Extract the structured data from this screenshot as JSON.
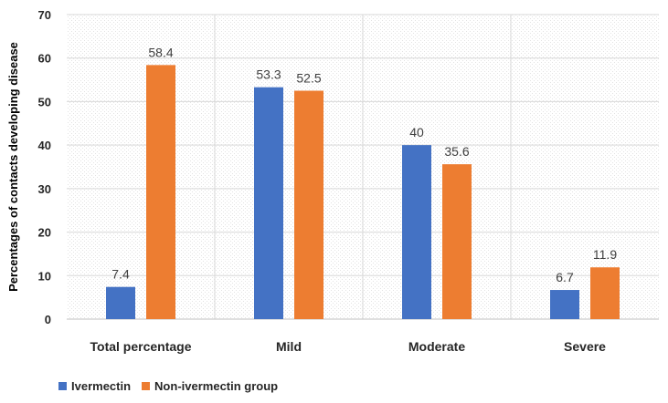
{
  "chart_data": {
    "type": "bar",
    "ylabel": "Percentages of contacts developing disease",
    "xlabel": "",
    "ylim": [
      0,
      70
    ],
    "yticks": [
      0,
      10,
      20,
      30,
      40,
      50,
      60,
      70
    ],
    "categories": [
      "Total percentage",
      "Mild",
      "Moderate",
      "Severe"
    ],
    "series": [
      {
        "name": "Ivermectin",
        "color": "#4472C4",
        "values": [
          7.4,
          53.3,
          40,
          6.7
        ]
      },
      {
        "name": "Non-ivermectin group",
        "color": "#ED7D31",
        "values": [
          58.4,
          52.5,
          35.6,
          11.9
        ]
      }
    ],
    "data_labels": [
      [
        "7.4",
        "53.3",
        "40",
        "6.7"
      ],
      [
        "58.4",
        "52.5",
        "35.6",
        "11.9"
      ]
    ],
    "grid": true,
    "background": "dotted",
    "legend_position": "bottom-left"
  }
}
